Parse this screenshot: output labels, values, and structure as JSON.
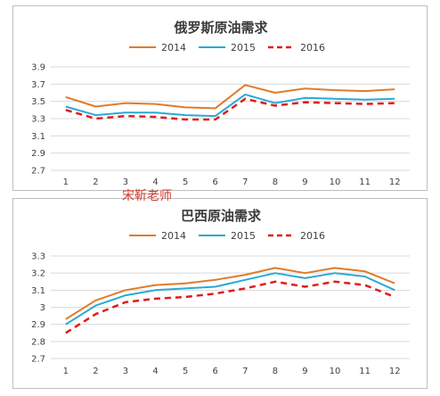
{
  "colors": {
    "2014": "#e07b2a",
    "2015": "#2aa9d4",
    "2016": "#e01c1c",
    "grid": "#d9d9d9"
  },
  "watermark": "宋靳老师",
  "chart_data": [
    {
      "type": "line",
      "title": "俄罗斯原油需求",
      "x": [
        1,
        2,
        3,
        4,
        5,
        6,
        7,
        8,
        9,
        10,
        11,
        12
      ],
      "ylim": [
        2.7,
        3.9
      ],
      "yticks": [
        "2.7",
        "2.9",
        "3.1",
        "3.3",
        "3.5",
        "3.7",
        "3.9"
      ],
      "grid": true,
      "legend_position": "top",
      "series": [
        {
          "name": "2014",
          "style": "solid",
          "values": [
            3.55,
            3.44,
            3.48,
            3.47,
            3.43,
            3.42,
            3.69,
            3.6,
            3.65,
            3.63,
            3.62,
            3.64
          ]
        },
        {
          "name": "2015",
          "style": "solid",
          "values": [
            3.44,
            3.34,
            3.37,
            3.37,
            3.34,
            3.33,
            3.58,
            3.48,
            3.54,
            3.53,
            3.52,
            3.53
          ]
        },
        {
          "name": "2016",
          "style": "dashed",
          "values": [
            3.4,
            3.3,
            3.33,
            3.32,
            3.29,
            3.29,
            3.53,
            3.45,
            3.49,
            3.48,
            3.47,
            3.48
          ]
        }
      ]
    },
    {
      "type": "line",
      "title": "巴西原油需求",
      "x": [
        1,
        2,
        3,
        4,
        5,
        6,
        7,
        8,
        9,
        10,
        11,
        12
      ],
      "ylim": [
        2.7,
        3.3
      ],
      "yticks": [
        "2.7",
        "2.8",
        "2.9",
        "3",
        "3.1",
        "3.2",
        "3.3"
      ],
      "grid": true,
      "legend_position": "top",
      "series": [
        {
          "name": "2014",
          "style": "solid",
          "values": [
            2.93,
            3.04,
            3.1,
            3.13,
            3.14,
            3.16,
            3.19,
            3.23,
            3.2,
            3.23,
            3.21,
            3.14
          ]
        },
        {
          "name": "2015",
          "style": "solid",
          "values": [
            2.9,
            3.01,
            3.07,
            3.1,
            3.11,
            3.12,
            3.16,
            3.2,
            3.17,
            3.2,
            3.18,
            3.1
          ]
        },
        {
          "name": "2016",
          "style": "dashed",
          "values": [
            2.85,
            2.96,
            3.03,
            3.05,
            3.06,
            3.08,
            3.11,
            3.15,
            3.12,
            3.15,
            3.13,
            3.06
          ]
        }
      ]
    }
  ]
}
